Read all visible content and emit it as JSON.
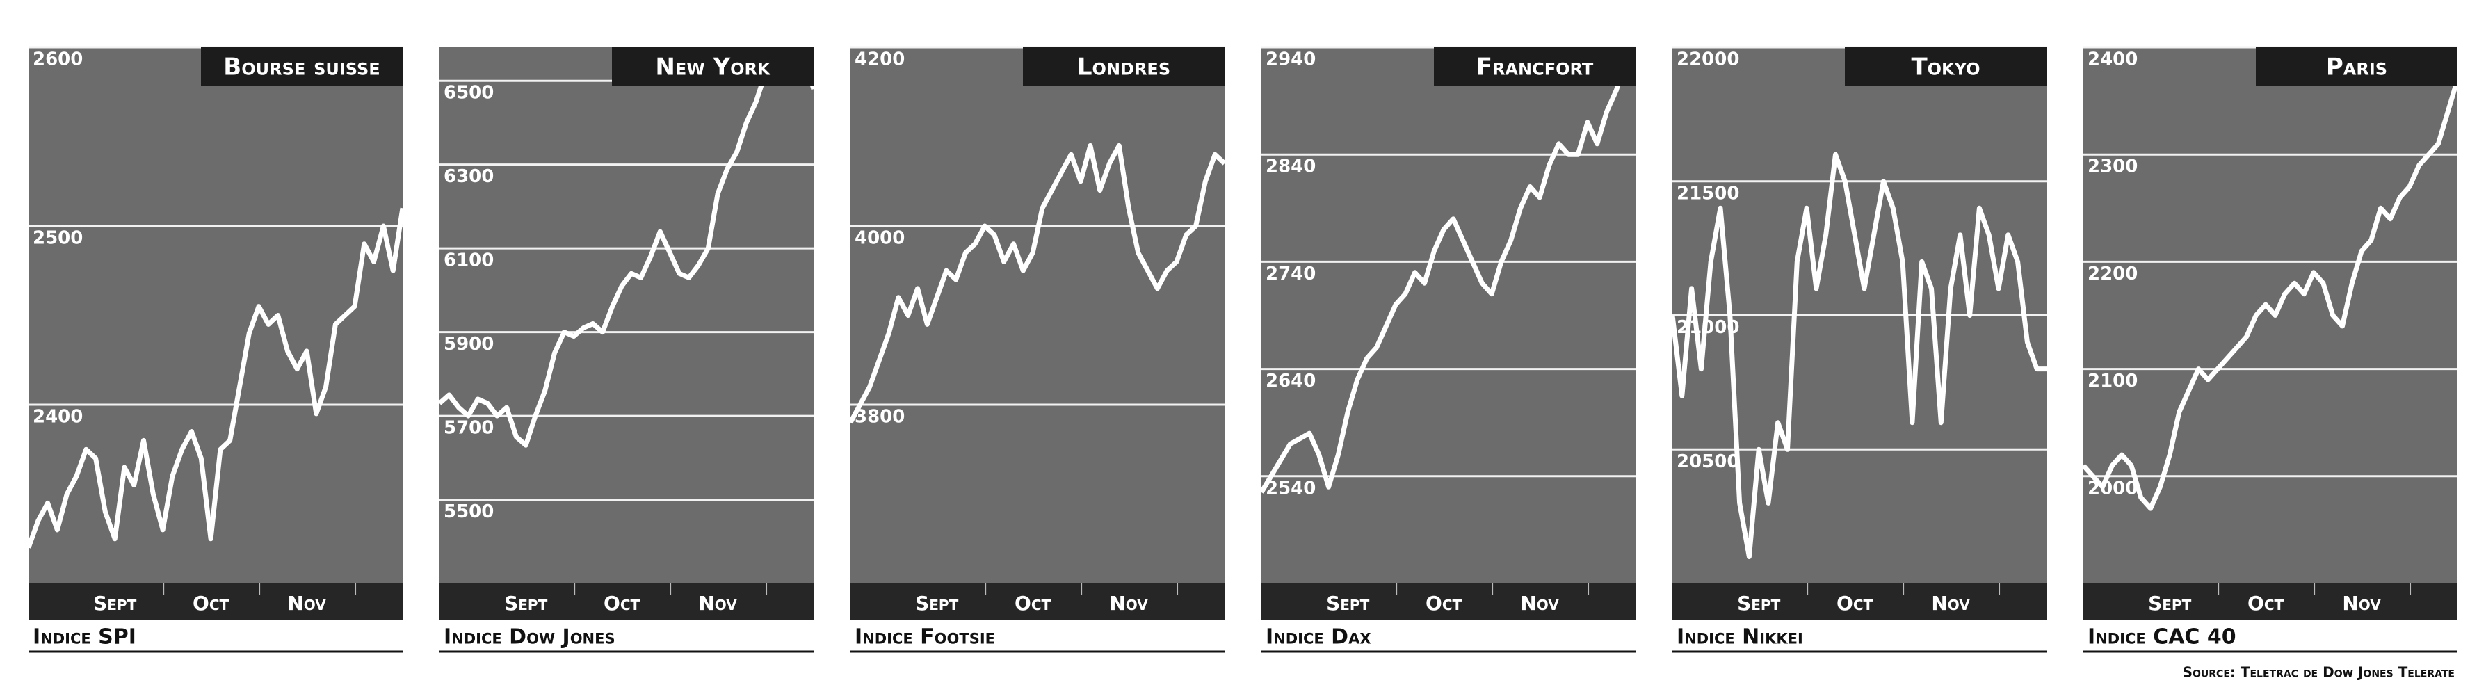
{
  "source": "Source: Teletrac de Dow Jones Telerate",
  "chart_data": [
    {
      "type": "line",
      "title": "Bourse suisse",
      "xlabel": "Indice SPI",
      "color": "#ffffff",
      "grid": true,
      "values": [
        2320,
        2335,
        2345,
        2330,
        2350,
        2360,
        2375,
        2370,
        2340,
        2325,
        2365,
        2355,
        2380,
        2350,
        2330,
        2360,
        2375,
        2385,
        2370,
        2325,
        2375,
        2380,
        2410,
        2440,
        2455,
        2445,
        2450,
        2430,
        2420,
        2430,
        2395,
        2410,
        2445,
        2450,
        2455,
        2490,
        2480,
        2500,
        2475,
        2510
      ],
      "xlim": [
        0,
        39
      ],
      "xticks": [
        {
          "value": 9,
          "label": "Sept"
        },
        {
          "value": 19,
          "label": "Oct"
        },
        {
          "value": 29,
          "label": "Nov"
        }
      ],
      "ylim": [
        2300,
        2600
      ],
      "yticks": [
        2400,
        2500,
        2600
      ]
    },
    {
      "type": "line",
      "title": "New York",
      "xlabel": "Indice Dow Jones",
      "color": "#ffffff",
      "grid": true,
      "values": [
        5730,
        5750,
        5720,
        5700,
        5740,
        5730,
        5700,
        5720,
        5650,
        5630,
        5700,
        5760,
        5850,
        5900,
        5890,
        5910,
        5920,
        5900,
        5960,
        6010,
        6040,
        6030,
        6080,
        6140,
        6090,
        6040,
        6030,
        6060,
        6100,
        6230,
        6290,
        6330,
        6400,
        6450,
        6520,
        6580,
        6560,
        6540,
        6560,
        6480
      ],
      "xlim": [
        0,
        39
      ],
      "xticks": [
        {
          "value": 9,
          "label": "Sept"
        },
        {
          "value": 19,
          "label": "Oct"
        },
        {
          "value": 29,
          "label": "Nov"
        }
      ],
      "ylim": [
        5300,
        6580
      ],
      "yticks": [
        5500,
        5700,
        5900,
        6100,
        6300,
        6500
      ]
    },
    {
      "type": "line",
      "title": "Londres",
      "xlabel": "Indice Footsie",
      "color": "#ffffff",
      "grid": true,
      "values": [
        3780,
        3800,
        3820,
        3850,
        3880,
        3920,
        3900,
        3930,
        3890,
        3920,
        3950,
        3940,
        3970,
        3980,
        4000,
        3990,
        3960,
        3980,
        3950,
        3970,
        4020,
        4040,
        4060,
        4080,
        4050,
        4090,
        4040,
        4070,
        4090,
        4020,
        3970,
        3950,
        3930,
        3950,
        3960,
        3990,
        4000,
        4050,
        4080,
        4070
      ],
      "xlim": [
        0,
        39
      ],
      "xticks": [
        {
          "value": 9,
          "label": "Sept"
        },
        {
          "value": 19,
          "label": "Oct"
        },
        {
          "value": 29,
          "label": "Nov"
        }
      ],
      "ylim": [
        3600,
        4200
      ],
      "yticks": [
        3800,
        4000,
        4200
      ]
    },
    {
      "type": "line",
      "title": "Francfort",
      "xlabel": "Indice Dax",
      "color": "#ffffff",
      "grid": true,
      "values": [
        2525,
        2540,
        2555,
        2570,
        2575,
        2580,
        2560,
        2530,
        2560,
        2600,
        2630,
        2650,
        2660,
        2680,
        2700,
        2710,
        2730,
        2720,
        2750,
        2770,
        2780,
        2760,
        2740,
        2720,
        2710,
        2740,
        2760,
        2790,
        2810,
        2800,
        2830,
        2850,
        2840,
        2840,
        2870,
        2850,
        2880,
        2900,
        2930,
        2910
      ],
      "xlim": [
        0,
        39
      ],
      "xticks": [
        {
          "value": 9,
          "label": "Sept"
        },
        {
          "value": 19,
          "label": "Oct"
        },
        {
          "value": 29,
          "label": "Nov"
        }
      ],
      "ylim": [
        2440,
        2940
      ],
      "yticks": [
        2540,
        2640,
        2740,
        2840,
        2940
      ]
    },
    {
      "type": "line",
      "title": "Tokyo",
      "xlabel": "Indice Nikkei",
      "color": "#ffffff",
      "grid": true,
      "values": [
        21000,
        20700,
        21100,
        20800,
        21200,
        21400,
        21000,
        20300,
        20100,
        20500,
        20300,
        20600,
        20500,
        21200,
        21400,
        21100,
        21300,
        21600,
        21500,
        21300,
        21100,
        21300,
        21500,
        21400,
        21200,
        20600,
        21200,
        21100,
        20600,
        21100,
        21300,
        21000,
        21400,
        21300,
        21100,
        21300,
        21200,
        20900,
        20800,
        20800
      ],
      "xlim": [
        0,
        39
      ],
      "xticks": [
        {
          "value": 9,
          "label": "Sept"
        },
        {
          "value": 19,
          "label": "Oct"
        },
        {
          "value": 29,
          "label": "Nov"
        }
      ],
      "ylim": [
        20000,
        22000
      ],
      "yticks": [
        20500,
        21000,
        21500,
        22000
      ]
    },
    {
      "type": "line",
      "title": "Paris",
      "xlabel": "Indice CAC 40",
      "color": "#ffffff",
      "grid": true,
      "values": [
        2010,
        2000,
        1990,
        2010,
        2020,
        2010,
        1980,
        1970,
        1990,
        2020,
        2060,
        2080,
        2100,
        2090,
        2100,
        2110,
        2120,
        2130,
        2150,
        2160,
        2150,
        2170,
        2180,
        2170,
        2190,
        2180,
        2150,
        2140,
        2180,
        2210,
        2220,
        2250,
        2240,
        2260,
        2270,
        2290,
        2300,
        2310,
        2340,
        2370
      ],
      "xlim": [
        0,
        39
      ],
      "xticks": [
        {
          "value": 9,
          "label": "Sept"
        },
        {
          "value": 19,
          "label": "Oct"
        },
        {
          "value": 29,
          "label": "Nov"
        }
      ],
      "ylim": [
        1900,
        2400
      ],
      "yticks": [
        2000,
        2100,
        2200,
        2300,
        2400
      ]
    }
  ]
}
